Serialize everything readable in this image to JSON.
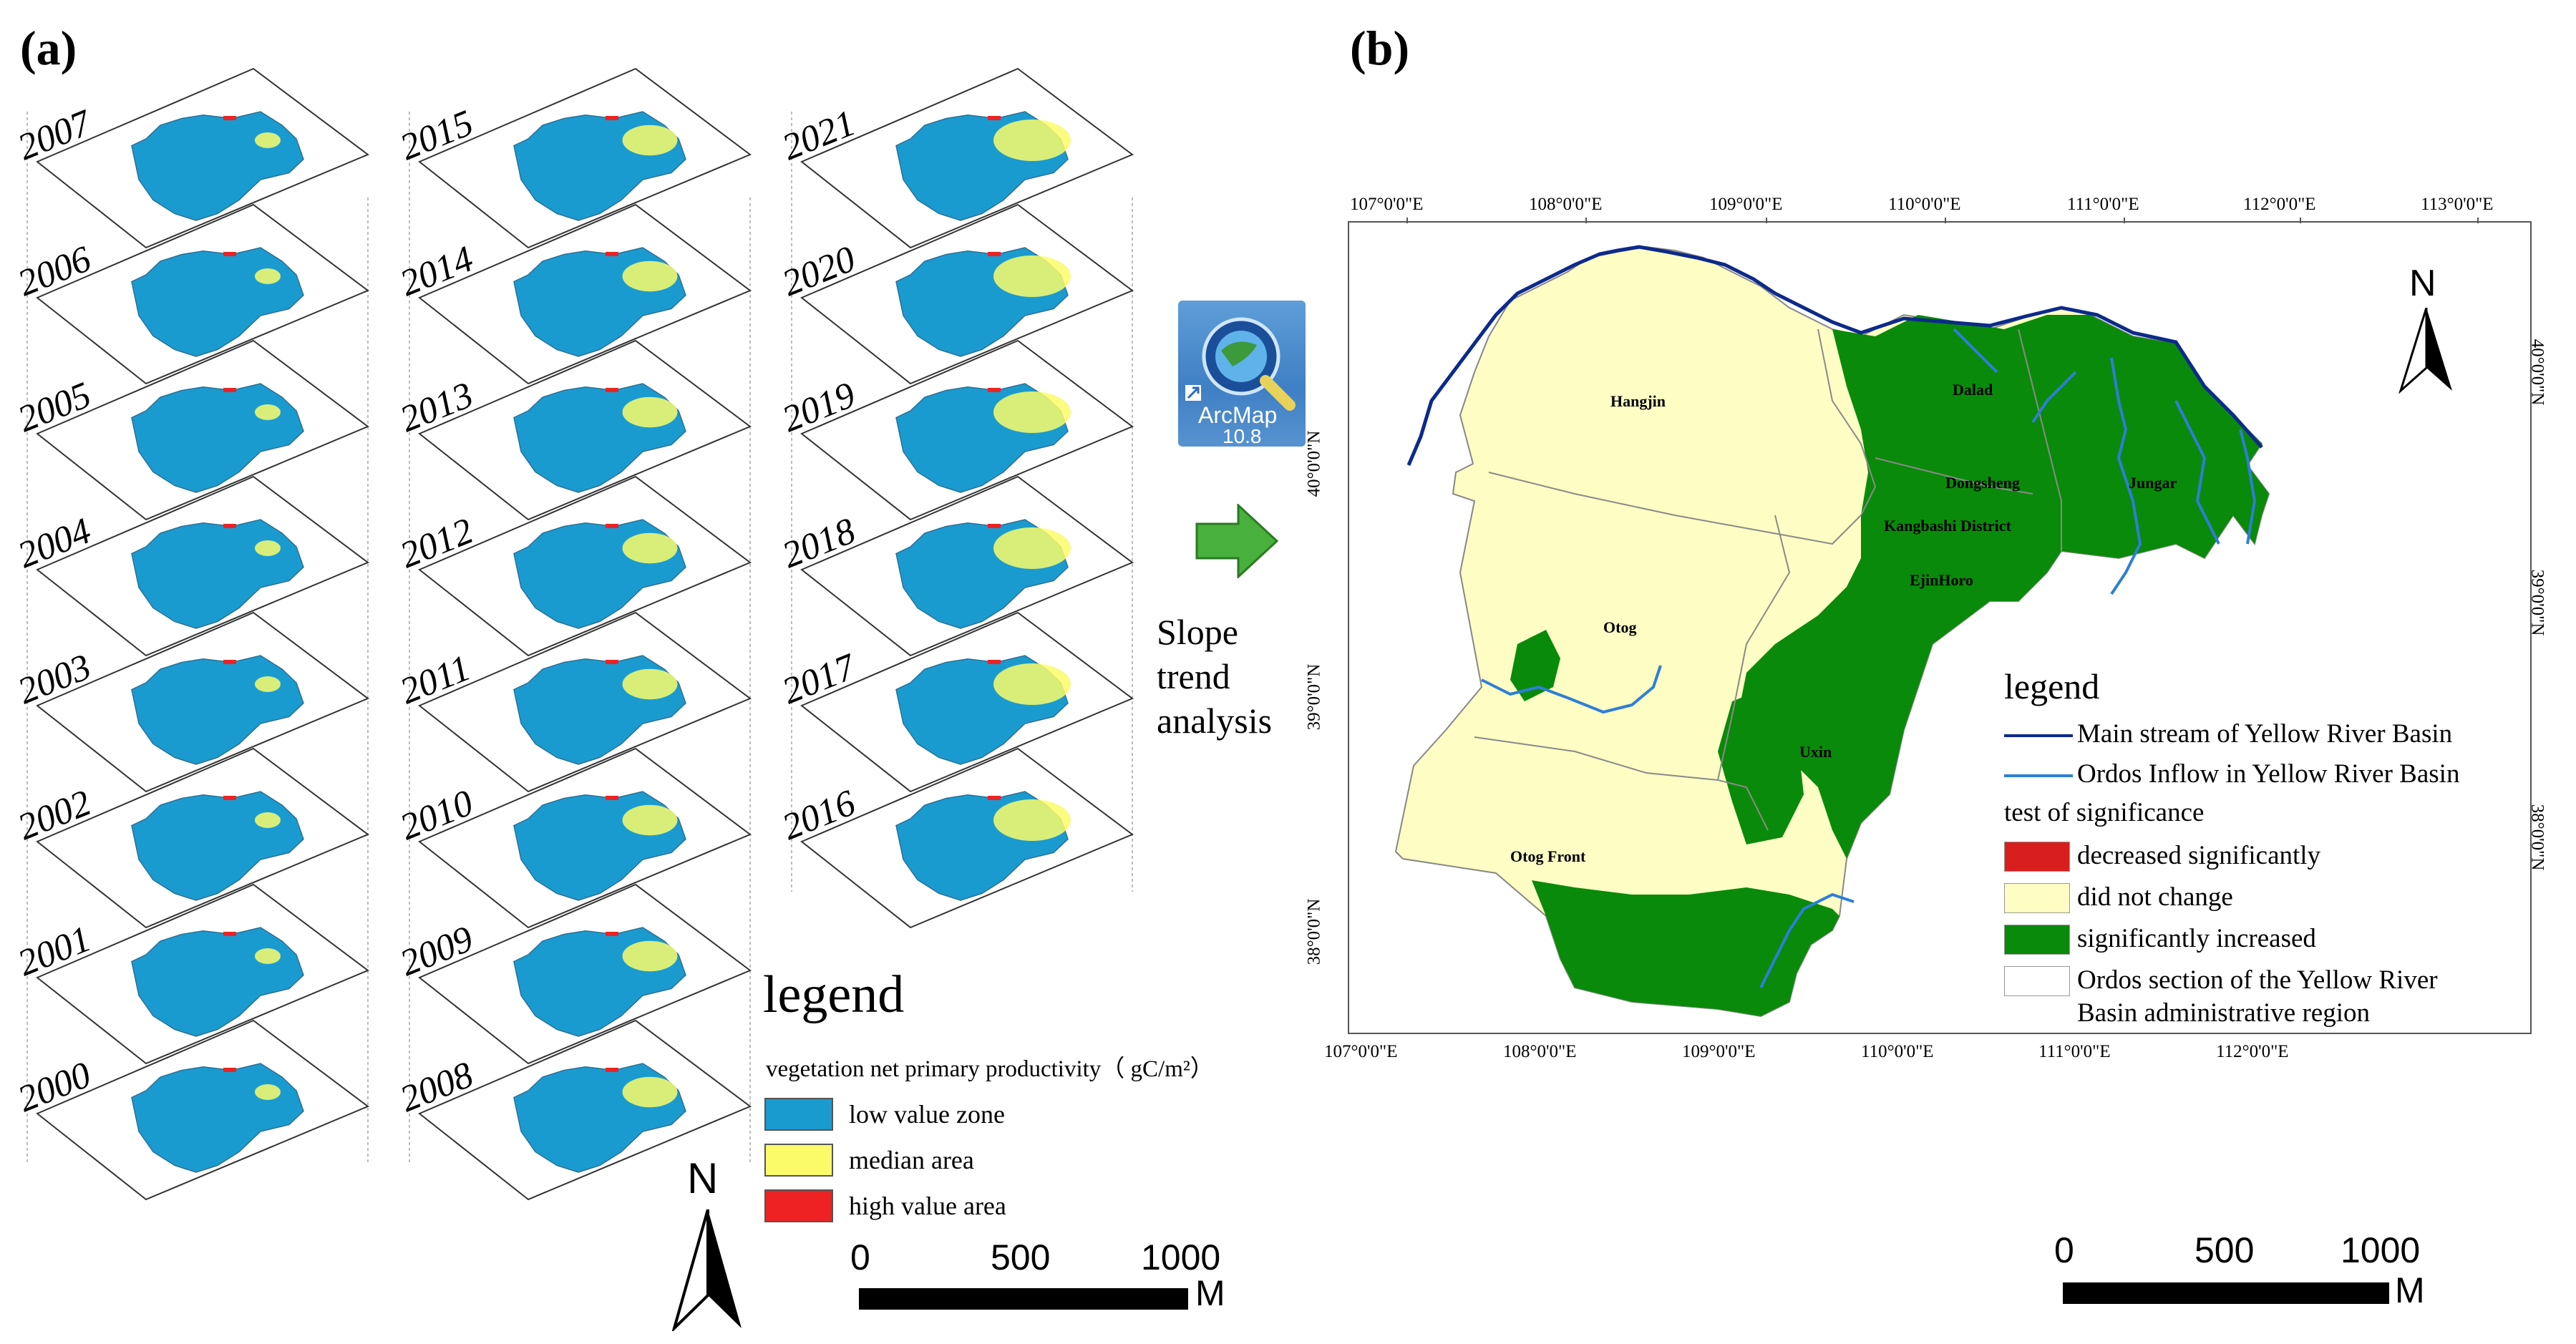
{
  "panel_a": {
    "label": "(a)",
    "years_col1": [
      "2007",
      "2006",
      "2005",
      "2004",
      "2003",
      "2002",
      "2001",
      "2000"
    ],
    "years_col2": [
      "2015",
      "2014",
      "2013",
      "2012",
      "2011",
      "2010",
      "2009",
      "2008"
    ],
    "years_col3": [
      "2021",
      "2020",
      "2019",
      "2018",
      "2017",
      "2016"
    ],
    "legend": {
      "title": "legend",
      "subtitle": "vegetation net primary productivity（ gC/m²）",
      "items": [
        {
          "label": "low value zone",
          "color": "#1a9bd0"
        },
        {
          "label": "median area",
          "color": "#fbfb6a"
        },
        {
          "label": "high value area",
          "color": "#ee2222"
        }
      ]
    },
    "north_label": "N",
    "scale": {
      "ticks": [
        "0",
        "500",
        "1000"
      ],
      "unit": "M"
    }
  },
  "middle": {
    "icon_name": "arcmap-icon",
    "icon_text": "ArcMap",
    "icon_version": "10.8",
    "arrow_icon": "green-right-arrow-icon",
    "process_lines": [
      "Slope",
      "trend",
      "analysis"
    ]
  },
  "panel_b": {
    "label": "(b)",
    "top_lon_labels": [
      "107°0'0\"E",
      "108°0'0\"E",
      "109°0'0\"E",
      "110°0'0\"E",
      "111°0'0\"E",
      "112°0'0\"E",
      "113°0'0\"E"
    ],
    "bottom_lon_labels": [
      "107°0'0\"E",
      "108°0'0\"E",
      "109°0'0\"E",
      "110°0'0\"E",
      "111°0'0\"E",
      "112°0'0\"E"
    ],
    "left_lat_labels": [
      "40°0'0\"N",
      "39°0'0\"N",
      "38°0'0\"N"
    ],
    "right_lat_labels": [
      "40°0'0\"N",
      "39°0'0\"N",
      "38°0'0\"N"
    ],
    "places": [
      "Hangjin",
      "Dalad",
      "Dongsheng",
      "Kangbashi District",
      "Jungar",
      "EjinHoro",
      "Otog",
      "Uxin",
      "Otog Front"
    ],
    "north_label": "N",
    "legend": {
      "title": "legend",
      "main_stream": "Main stream of Yellow River Basin",
      "inflow": "Ordos Inflow in Yellow River Basin",
      "significance_title": "test of significance",
      "items": [
        {
          "label": "decreased significantly",
          "color": "#d91e1e"
        },
        {
          "label": "did not change",
          "color": "#fdfdc4"
        },
        {
          "label": "significantly increased",
          "color": "#0a8a0a"
        }
      ],
      "admin_label_1": "Ordos section of the Yellow River",
      "admin_label_2": "Basin administrative region",
      "colors": {
        "main_stream": "#0d2a8a",
        "inflow": "#2d7fd6"
      }
    },
    "scale": {
      "ticks": [
        "0",
        "500",
        "1000"
      ],
      "unit": "M"
    }
  }
}
